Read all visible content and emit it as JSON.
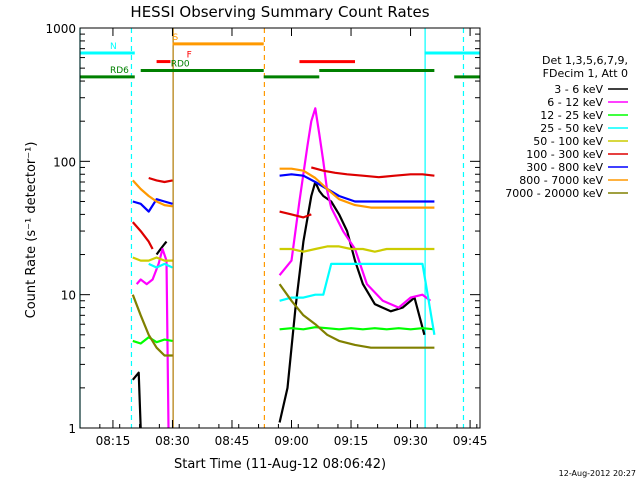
{
  "chart_data": {
    "type": "line",
    "title": "HESSI Observing Summary Count Rates",
    "xlabel": "Start Time (11-Aug-12 08:06:42)",
    "ylabel": "Count Rate (s⁻¹ detector⁻¹)",
    "footer_date": "12-Aug-2012 20:27",
    "yscale": "log",
    "ylim": [
      1,
      1000
    ],
    "xlim": [
      "08:06:42",
      "09:47:30"
    ],
    "y_ticks": [
      1,
      10,
      100,
      1000
    ],
    "y_tick_labels": [
      "1",
      "10",
      "100",
      "1000"
    ],
    "x_ticks": [
      "08:15",
      "08:30",
      "08:45",
      "09:00",
      "09:15",
      "09:30",
      "09:45"
    ],
    "legend": {
      "placement": "right",
      "header": [
        "Det 1,3,5,6,7,9,",
        "FDecim 1, Att 0"
      ],
      "entries": [
        {
          "label": "3 - 6 keV",
          "color": "#000000"
        },
        {
          "label": "6 - 12 keV",
          "color": "#ff00ff"
        },
        {
          "label": "12 - 25 keV",
          "color": "#00ff00"
        },
        {
          "label": "25 - 50 keV",
          "color": "#00ffff"
        },
        {
          "label": "50 - 100 keV",
          "color": "#cccc00"
        },
        {
          "label": "100 - 300 keV",
          "color": "#dd0000"
        },
        {
          "label": "300 - 800 keV",
          "color": "#0000ff"
        },
        {
          "label": "800 - 7000 keV",
          "color": "#ff9900"
        },
        {
          "label": "7000 - 20000 keV",
          "color": "#808000"
        }
      ]
    },
    "flag_bars": [
      {
        "label": "N",
        "color": "#00ffff",
        "y": 650,
        "segments": [
          [
            "08:06:42",
            "08:20:30"
          ],
          [
            "09:33:30",
            "09:47:30"
          ]
        ]
      },
      {
        "label": "S",
        "color": "#ff9900",
        "y": 760,
        "segments": [
          [
            "08:30:00",
            "08:53:00"
          ]
        ]
      },
      {
        "label": "F",
        "color": "#ff0000",
        "y": 560,
        "segments": [
          [
            "08:26:00",
            "08:29:30"
          ],
          [
            "09:02:00",
            "09:16:00"
          ]
        ]
      },
      {
        "label": "RD0",
        "color": "#008000",
        "y": 480,
        "segments": [
          [
            "08:22:00",
            "08:53:00"
          ],
          [
            "09:07:00",
            "09:36:00"
          ]
        ]
      },
      {
        "label": "RD6",
        "color": "#008000",
        "y": 430,
        "segments": [
          [
            "08:06:42",
            "08:20:30"
          ],
          [
            "08:53:00",
            "09:07:00"
          ],
          [
            "09:41:00",
            "09:47:30"
          ]
        ]
      }
    ],
    "vertical_markers": [
      {
        "time": "08:06:42",
        "color": "#00ffff",
        "style": "solid"
      },
      {
        "time": "08:19:40",
        "color": "#00ffff",
        "style": "dashed"
      },
      {
        "time": "08:30:10",
        "color": "#b07800",
        "style": "solid"
      },
      {
        "time": "08:53:10",
        "color": "#ff9900",
        "style": "dashed"
      },
      {
        "time": "09:33:40",
        "color": "#00ffff",
        "style": "solid"
      },
      {
        "time": "09:43:20",
        "color": "#00ffff",
        "style": "dashed"
      }
    ],
    "series": [
      {
        "name": "3 - 6 keV",
        "color": "#000000",
        "segments": [
          {
            "x": [
              "08:20:00",
              "08:21:30",
              "08:22:00"
            ],
            "y": [
              2.3,
              2.6,
              1.0
            ]
          },
          {
            "x": [
              "08:26:00",
              "08:27:00",
              "08:28:00",
              "08:28:30"
            ],
            "y": [
              20,
              22,
              24,
              25
            ]
          },
          {
            "x": [
              "08:57:00",
              "08:59:00",
              "09:01:00",
              "09:03:00",
              "09:05:00",
              "09:06:00",
              "09:07:00",
              "09:08:00",
              "09:10:00",
              "09:12:00",
              "09:14:00",
              "09:16:00",
              "09:18:00",
              "09:21:00",
              "09:25:00",
              "09:28:00",
              "09:31:00",
              "09:33:30"
            ],
            "y": [
              1.1,
              2.0,
              8,
              25,
              55,
              70,
              60,
              55,
              50,
              40,
              30,
              18,
              12,
              8.5,
              7.5,
              8,
              9.5,
              5
            ]
          }
        ]
      },
      {
        "name": "6 - 12 keV",
        "color": "#ff00ff",
        "segments": [
          {
            "x": [
              "08:21:00",
              "08:22:00",
              "08:23:30",
              "08:25:00",
              "08:26:30",
              "08:27:30",
              "08:28:30",
              "08:29:00"
            ],
            "y": [
              12,
              13,
              12,
              13,
              17,
              22,
              18,
              1.0
            ]
          },
          {
            "x": [
              "08:57:00",
              "09:00:00",
              "09:02:00",
              "09:04:00",
              "09:05:00",
              "09:06:00",
              "09:07:00",
              "09:08:00",
              "09:09:00",
              "09:10:00",
              "09:13:00",
              "09:16:00",
              "09:19:00",
              "09:23:00",
              "09:27:00",
              "09:30:00",
              "09:33:00",
              "09:35:00"
            ],
            "y": [
              14,
              18,
              50,
              130,
              200,
              250,
              160,
              100,
              60,
              45,
              30,
              22,
              12,
              9,
              8,
              9.5,
              10,
              9
            ]
          }
        ]
      },
      {
        "name": "12 - 25 keV",
        "color": "#00ff00",
        "segments": [
          {
            "x": [
              "08:20:00",
              "08:22:00",
              "08:24:00",
              "08:26:00",
              "08:28:00",
              "08:30:00"
            ],
            "y": [
              4.5,
              4.3,
              4.8,
              4.4,
              4.6,
              4.5
            ]
          },
          {
            "x": [
              "08:57:00",
              "09:00:00",
              "09:03:00",
              "09:06:00",
              "09:09:00",
              "09:12:00",
              "09:15:00",
              "09:18:00",
              "09:21:00",
              "09:24:00",
              "09:27:00",
              "09:30:00",
              "09:33:00",
              "09:36:00"
            ],
            "y": [
              5.5,
              5.6,
              5.5,
              5.7,
              5.6,
              5.5,
              5.6,
              5.5,
              5.6,
              5.5,
              5.6,
              5.5,
              5.6,
              5.5
            ]
          }
        ]
      },
      {
        "name": "25 - 50 keV",
        "color": "#00ffff",
        "segments": [
          {
            "x": [
              "08:24:00",
              "08:26:00",
              "08:28:00",
              "08:30:00"
            ],
            "y": [
              17,
              16,
              17,
              16
            ]
          },
          {
            "x": [
              "08:57:00",
              "09:00:00",
              "09:03:00",
              "09:06:00",
              "09:08:00",
              "09:10:00",
              "09:14:00",
              "09:18:00",
              "09:22:00",
              "09:26:00",
              "09:30:00",
              "09:33:00",
              "09:36:00"
            ],
            "y": [
              9,
              9.5,
              9.5,
              10,
              10,
              17,
              17,
              17,
              17,
              17,
              17,
              17,
              5
            ]
          }
        ]
      },
      {
        "name": "50 - 100 keV",
        "color": "#cccc00",
        "segments": [
          {
            "x": [
              "08:20:00",
              "08:22:00",
              "08:24:00",
              "08:26:00",
              "08:28:00",
              "08:30:00"
            ],
            "y": [
              19,
              18,
              18,
              19,
              18,
              18
            ]
          },
          {
            "x": [
              "08:57:00",
              "09:00:00",
              "09:03:00",
              "09:06:00",
              "09:09:00",
              "09:12:00",
              "09:15:00",
              "09:18:00",
              "09:21:00",
              "09:24:00",
              "09:27:00",
              "09:30:00",
              "09:33:00",
              "09:36:00"
            ],
            "y": [
              22,
              22,
              21,
              22,
              23,
              23,
              22,
              22,
              21,
              22,
              22,
              22,
              22,
              22
            ]
          }
        ]
      },
      {
        "name": "100 - 300 keV",
        "color": "#dd0000",
        "segments": [
          {
            "x": [
              "08:20:00",
              "08:22:00",
              "08:24:00",
              "08:25:00"
            ],
            "y": [
              35,
              30,
              25,
              22
            ]
          },
          {
            "x": [
              "08:24:00",
              "08:26:00",
              "08:28:00",
              "08:30:00"
            ],
            "y": [
              75,
              72,
              70,
              72
            ]
          },
          {
            "x": [
              "08:57:00",
              "09:00:00",
              "09:03:00",
              "09:05:00"
            ],
            "y": [
              42,
              40,
              38,
              40
            ]
          },
          {
            "x": [
              "09:05:00",
              "09:08:00",
              "09:11:00",
              "09:14:00",
              "09:18:00",
              "09:22:00",
              "09:26:00",
              "09:30:00",
              "09:33:00",
              "09:36:00"
            ],
            "y": [
              90,
              85,
              82,
              80,
              78,
              76,
              78,
              80,
              80,
              78
            ]
          }
        ]
      },
      {
        "name": "300 - 800 keV",
        "color": "#0000ff",
        "segments": [
          {
            "x": [
              "08:20:00",
              "08:22:00",
              "08:24:00",
              "08:26:00",
              "08:28:00",
              "08:30:00"
            ],
            "y": [
              50,
              48,
              42,
              52,
              50,
              48
            ]
          },
          {
            "x": [
              "08:57:00",
              "09:00:00",
              "09:03:00",
              "09:06:00",
              "09:09:00",
              "09:12:00",
              "09:16:00",
              "09:20:00",
              "09:24:00",
              "09:28:00",
              "09:32:00",
              "09:36:00"
            ],
            "y": [
              78,
              80,
              78,
              70,
              62,
              55,
              50,
              50,
              50,
              50,
              50,
              50
            ]
          }
        ]
      },
      {
        "name": "800 - 7000 keV",
        "color": "#ff9900",
        "segments": [
          {
            "x": [
              "08:20:00",
              "08:22:00",
              "08:24:00",
              "08:26:00",
              "08:28:00",
              "08:30:00"
            ],
            "y": [
              72,
              62,
              55,
              50,
              47,
              46
            ]
          },
          {
            "x": [
              "08:57:00",
              "09:00:00",
              "09:03:00",
              "09:06:00",
              "09:09:00",
              "09:12:00",
              "09:16:00",
              "09:20:00",
              "09:24:00",
              "09:28:00",
              "09:32:00",
              "09:36:00"
            ],
            "y": [
              88,
              88,
              85,
              75,
              62,
              52,
              47,
              45,
              45,
              45,
              45,
              45
            ]
          }
        ]
      },
      {
        "name": "7000 - 20000 keV",
        "color": "#808000",
        "segments": [
          {
            "x": [
              "08:20:00",
              "08:22:00",
              "08:24:00",
              "08:26:00",
              "08:28:00",
              "08:30:00"
            ],
            "y": [
              10,
              7,
              5,
              4,
              3.5,
              3.5
            ]
          },
          {
            "x": [
              "08:57:00",
              "09:00:00",
              "09:03:00",
              "09:06:00",
              "09:09:00",
              "09:12:00",
              "09:16:00",
              "09:20:00",
              "09:24:00",
              "09:28:00",
              "09:32:00",
              "09:36:00"
            ],
            "y": [
              12,
              9,
              7,
              6,
              5,
              4.5,
              4.2,
              4.0,
              4.0,
              4.0,
              4.0,
              4.0
            ]
          }
        ]
      }
    ]
  }
}
